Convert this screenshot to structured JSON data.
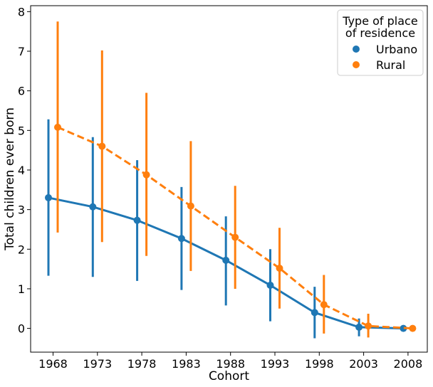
{
  "chart_data": {
    "type": "line",
    "xlabel": "Cohort",
    "ylabel": "Total children ever born",
    "categories": [
      "1968",
      "1973",
      "1978",
      "1983",
      "1988",
      "1993",
      "1998",
      "2003",
      "2008"
    ],
    "ylim": [
      -0.6,
      8.15
    ],
    "yticks": [
      "0",
      "1",
      "2",
      "3",
      "4",
      "5",
      "6",
      "7",
      "8"
    ],
    "grid": false,
    "legend": {
      "title_line1": "Type of place",
      "title_line2": "of residence",
      "placement": "top-right"
    },
    "series": [
      {
        "name": "Urbano",
        "color": "#1f77b4",
        "line_style": "solid",
        "values": [
          3.3,
          3.07,
          2.73,
          2.27,
          1.72,
          1.09,
          0.4,
          0.03,
          0.0
        ],
        "error_low": [
          1.33,
          1.3,
          1.2,
          0.97,
          0.58,
          0.18,
          -0.25,
          -0.2,
          -0.05
        ],
        "error_high": [
          5.28,
          4.83,
          4.25,
          3.57,
          2.83,
          2.0,
          1.05,
          0.25,
          0.05
        ]
      },
      {
        "name": "Rural",
        "color": "#ff7f0e",
        "line_style": "dashed",
        "values": [
          5.08,
          4.6,
          3.88,
          3.09,
          2.3,
          1.52,
          0.6,
          0.06,
          0.0
        ],
        "error_low": [
          2.42,
          2.18,
          1.83,
          1.45,
          1.0,
          0.5,
          -0.13,
          -0.23,
          -0.05
        ],
        "error_high": [
          7.75,
          7.02,
          5.95,
          4.73,
          3.6,
          2.54,
          1.35,
          0.37,
          0.05
        ]
      }
    ]
  }
}
